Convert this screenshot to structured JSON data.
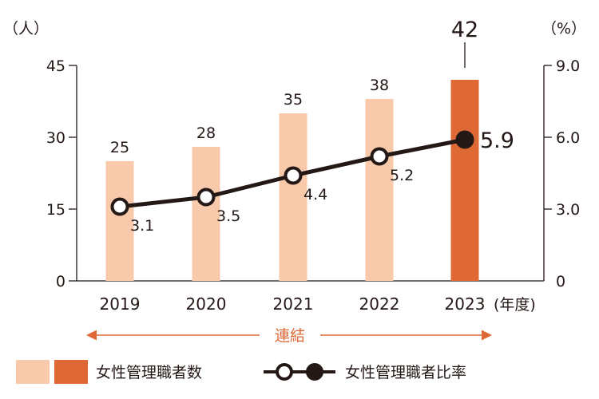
{
  "chart_data": {
    "type": "bar",
    "categories": [
      "2019",
      "2020",
      "2021",
      "2022",
      "2023"
    ],
    "x_unit": "(年度)",
    "left_axis": {
      "unit": "（人）",
      "ylim": [
        0,
        45
      ],
      "ticks": [
        "0",
        "15",
        "30",
        "45"
      ]
    },
    "right_axis": {
      "unit": "（%）",
      "ylim": [
        0,
        9
      ],
      "ticks": [
        "0",
        "3.0",
        "6.0",
        "9.0"
      ]
    },
    "series": [
      {
        "name": "女性管理職者数",
        "type": "bar",
        "axis": "left",
        "values": [
          25,
          28,
          35,
          38,
          42
        ],
        "labels": [
          "25",
          "28",
          "35",
          "38",
          "42"
        ],
        "color": "#f8c9ab",
        "highlight_color": "#df6935"
      },
      {
        "name": "女性管理職者比率",
        "type": "line",
        "axis": "right",
        "values": [
          3.1,
          3.5,
          4.4,
          5.2,
          5.9
        ],
        "labels": [
          "3.1",
          "3.5",
          "4.4",
          "5.2",
          "5.9"
        ],
        "color": "#231815"
      }
    ],
    "scope_label": "連結",
    "scope_color": "#df6935",
    "grid": false
  }
}
